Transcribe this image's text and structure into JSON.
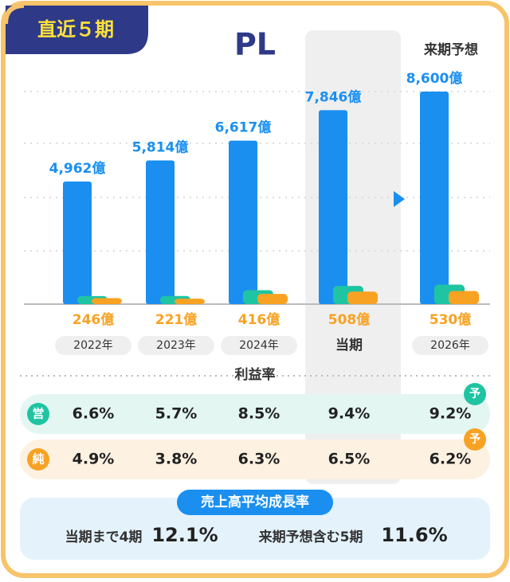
{
  "badge": "直近５期",
  "chart_data": {
    "type": "bar",
    "title": "PL",
    "forecast_label": "来期予想",
    "categories": [
      "2022年",
      "2023年",
      "2024年",
      "当期",
      "2026年"
    ],
    "series": [
      {
        "color": "#1a8ff0",
        "values": [
          4962,
          5814,
          6617,
          7846,
          8600
        ],
        "value_labels": [
          "4,962億",
          "5,814億",
          "6,617億",
          "7,846億",
          "8,600億"
        ]
      },
      {
        "color": "#1fc4a2",
        "values": [
          327,
          331,
          562,
          738,
          791
        ]
      },
      {
        "color": "#f8a223",
        "values": [
          246,
          221,
          416,
          508,
          530
        ],
        "value_labels": [
          "246億",
          "221億",
          "416億",
          "508億",
          "530億"
        ]
      }
    ]
  },
  "margins": {
    "title": "利益率",
    "rows": [
      {
        "label": "営",
        "values": [
          "6.6%",
          "5.7%",
          "8.5%",
          "9.4%",
          "9.2%"
        ],
        "forecast": "予"
      },
      {
        "label": "純",
        "values": [
          "4.9%",
          "3.8%",
          "6.3%",
          "6.5%",
          "6.2%"
        ],
        "forecast": "予"
      }
    ]
  },
  "growth": {
    "title": "売上高平均成長率",
    "items": [
      {
        "label": "当期まで4期",
        "value": "12.1%"
      },
      {
        "label": "来期予想含む5期",
        "value": "11.6%"
      }
    ]
  }
}
